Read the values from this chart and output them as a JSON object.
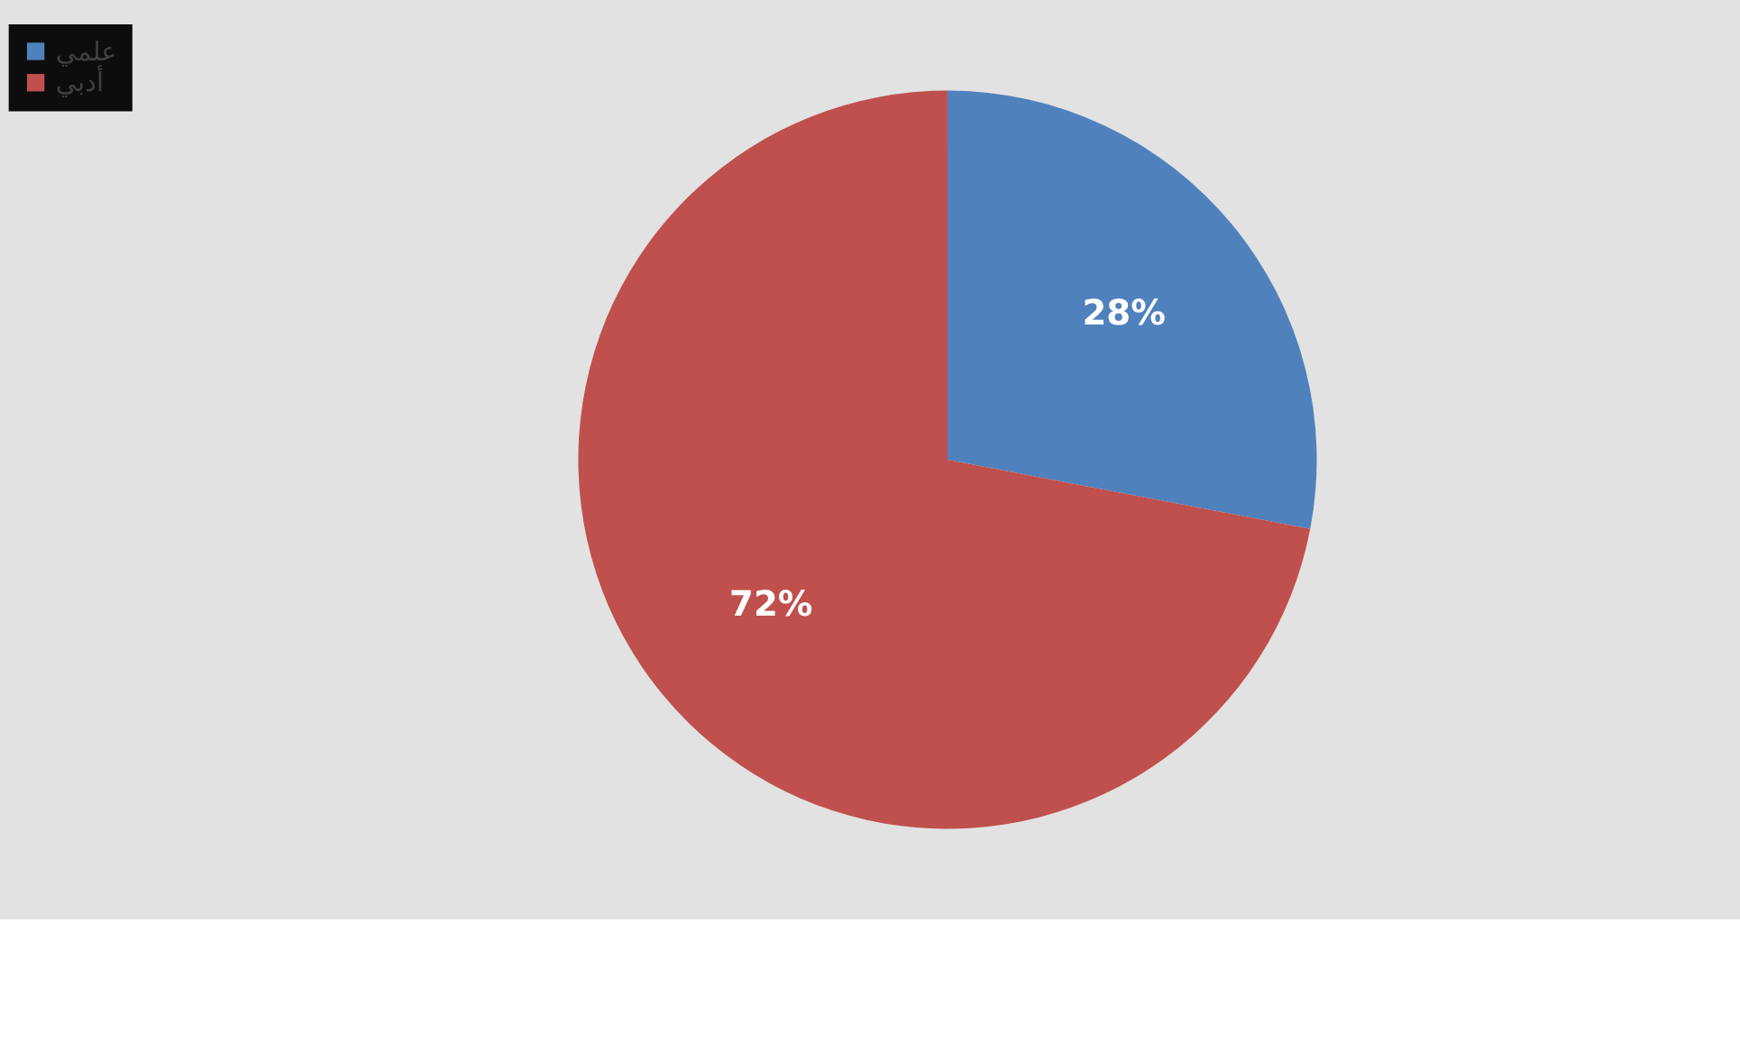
{
  "chart_data": {
    "type": "pie",
    "categories": [
      "علمي",
      "أدبي"
    ],
    "values": [
      28,
      72
    ],
    "colors": [
      "#4f81bd",
      "#c0504d"
    ],
    "value_labels": [
      "28%",
      "72%"
    ],
    "legend": "left"
  }
}
